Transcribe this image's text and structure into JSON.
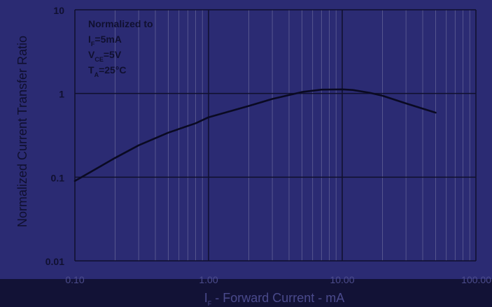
{
  "chart_data": {
    "type": "line",
    "xscale": "log",
    "yscale": "log",
    "xlim": [
      0.1,
      100
    ],
    "ylim": [
      0.01,
      10
    ],
    "x_ticks": [
      0.1,
      1,
      10,
      100
    ],
    "x_tick_labels": [
      "0.10",
      "1.00",
      "10.00",
      "100.00"
    ],
    "y_ticks": [
      0.01,
      0.1,
      1,
      10
    ],
    "y_tick_labels": [
      "0.01",
      "0.1",
      "1",
      "10"
    ],
    "xlabel": "IF - Forward Current - mA",
    "ylabel": "Normalized Current Transfer Ratio",
    "grid": true,
    "annotation": {
      "title": "Normalized to",
      "lines": [
        "IF=5mA",
        "VCE=5V",
        "TA=25°C"
      ]
    },
    "series": [
      {
        "x": [
          0.1,
          0.2,
          0.3,
          0.5,
          0.8,
          1,
          2,
          3,
          5,
          7,
          10,
          12,
          16,
          20,
          30,
          50
        ],
        "y": [
          0.09,
          0.17,
          0.24,
          0.34,
          0.44,
          0.52,
          0.71,
          0.86,
          1.04,
          1.11,
          1.12,
          1.1,
          1.02,
          0.94,
          0.76,
          0.59
        ]
      }
    ],
    "colors": {
      "background": "#2b2b73",
      "bottom_band": "#121236",
      "grid_major": "#10102c",
      "grid_minor": "#56568e",
      "line": "#0a0a22"
    }
  }
}
